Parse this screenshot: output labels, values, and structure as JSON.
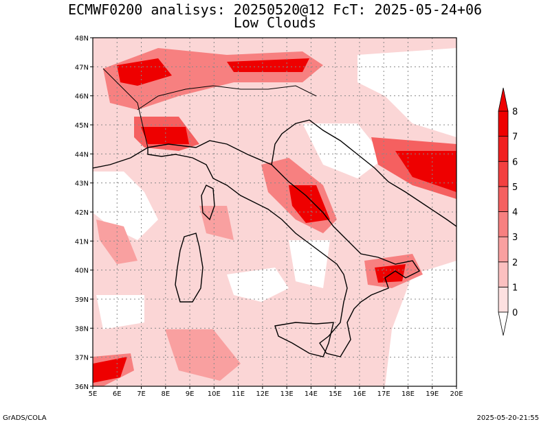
{
  "title": "ECMWF0200 analisys: 20250520@12 FcT: 2025-05-24+06",
  "subtitle": "Low Clouds",
  "lon_labels": [
    "5E",
    "6E",
    "7E",
    "8E",
    "9E",
    "10E",
    "11E",
    "12E",
    "13E",
    "14E",
    "15E",
    "16E",
    "17E",
    "18E",
    "19E",
    "20E"
  ],
  "lat_labels": [
    "36N",
    "37N",
    "38N",
    "39N",
    "40N",
    "41N",
    "42N",
    "43N",
    "44N",
    "45N",
    "46N",
    "47N",
    "48N"
  ],
  "colorbar": {
    "levels": [
      "0",
      "1",
      "2",
      "3",
      "4",
      "5",
      "6",
      "7",
      "8"
    ],
    "colors": [
      "#ffffff",
      "#fde0e0",
      "#fbc0c0",
      "#f9a0a0",
      "#f78080",
      "#f56060",
      "#f34040",
      "#f12020",
      "#ee0000"
    ]
  },
  "footer_left": "GrADS/COLA",
  "footer_right": "2025-05-20-21:55"
}
